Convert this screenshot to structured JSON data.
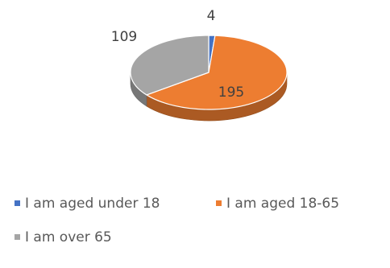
{
  "chart_data": {
    "type": "pie",
    "three_d": true,
    "categories": [
      "I am aged under 18",
      "I am aged 18-65",
      "I am over 65"
    ],
    "values": [
      4,
      195,
      109
    ],
    "colors": [
      "#4472C4",
      "#ED7D31",
      "#A5A5A5"
    ],
    "data_labels": [
      "4",
      "195",
      "109"
    ],
    "legend_position": "bottom",
    "title": ""
  }
}
